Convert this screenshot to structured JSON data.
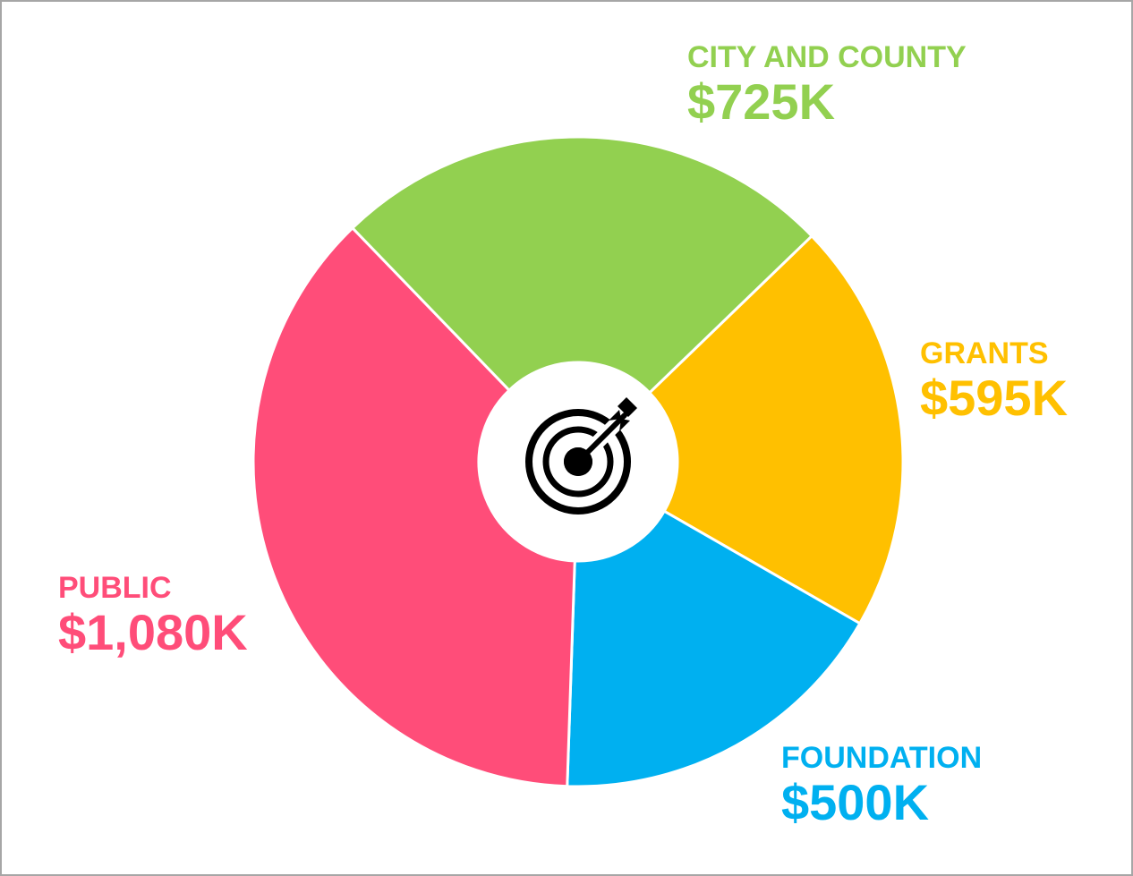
{
  "chart_data": {
    "type": "pie",
    "title": "",
    "center_icon": "target-with-arrow-icon",
    "slices": [
      {
        "label": "CITY AND COUNTY",
        "value_label": "$725K",
        "value": 725,
        "color": "#92d050"
      },
      {
        "label": "GRANTS",
        "value_label": "$595K",
        "value": 595,
        "color": "#ffc000"
      },
      {
        "label": "FOUNDATION",
        "value_label": "$500K",
        "value": 500,
        "color": "#00b0f0"
      },
      {
        "label": "PUBLIC",
        "value_label": "$1,080K",
        "value": 1080,
        "color": "#ff4d79"
      }
    ]
  }
}
